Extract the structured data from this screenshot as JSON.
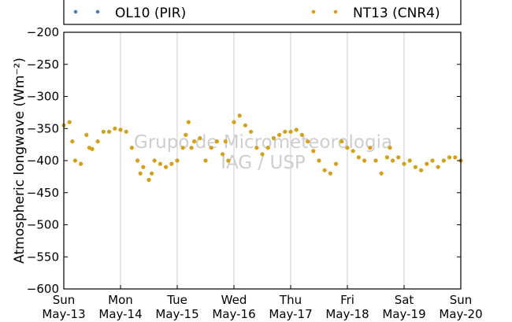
{
  "chart_data": {
    "type": "scatter",
    "ylabel": "Atmospheric longwave (Wm⁻²)",
    "xlabel": "",
    "ylim": [
      -600,
      -200
    ],
    "yticks": [
      -200,
      -250,
      -300,
      -350,
      -400,
      -450,
      -500,
      -550,
      -600
    ],
    "y_tick_labels": [
      "−200",
      "−250",
      "−300",
      "−350",
      "−400",
      "−450",
      "−500",
      "−550",
      "−600"
    ],
    "x_range_days": [
      0,
      7
    ],
    "x_ticks": [
      {
        "day": 0,
        "weekday": "Sun",
        "date": "May-13"
      },
      {
        "day": 1,
        "weekday": "Mon",
        "date": "May-14"
      },
      {
        "day": 2,
        "weekday": "Tue",
        "date": "May-15"
      },
      {
        "day": 3,
        "weekday": "Wed",
        "date": "May-16"
      },
      {
        "day": 4,
        "weekday": "Thu",
        "date": "May-17"
      },
      {
        "day": 5,
        "weekday": "Fri",
        "date": "May-18"
      },
      {
        "day": 6,
        "weekday": "Sat",
        "date": "May-19"
      },
      {
        "day": 7,
        "weekday": "Sun",
        "date": "May-20"
      }
    ],
    "grid": "vertical",
    "legend_placement": "top",
    "watermark": [
      "Grupo de Micrometeorologia",
      "IAG / USP"
    ],
    "series": [
      {
        "name": "OL10 (PIR)",
        "color": "#4a7fb5",
        "x": [],
        "y": []
      },
      {
        "name": "NT13 (CNR4)",
        "color": "#d4a017",
        "x": [
          0.0,
          0.1,
          0.15,
          0.2,
          0.3,
          0.4,
          0.45,
          0.5,
          0.6,
          0.7,
          0.8,
          0.9,
          1.0,
          1.1,
          1.2,
          1.3,
          1.35,
          1.4,
          1.5,
          1.55,
          1.6,
          1.7,
          1.8,
          1.9,
          2.0,
          2.1,
          2.15,
          2.2,
          2.25,
          2.3,
          2.4,
          2.5,
          2.6,
          2.7,
          2.8,
          2.85,
          2.9,
          3.0,
          3.1,
          3.2,
          3.3,
          3.4,
          3.5,
          3.6,
          3.7,
          3.8,
          3.9,
          4.0,
          4.1,
          4.2,
          4.3,
          4.4,
          4.5,
          4.6,
          4.7,
          4.8,
          4.9,
          5.0,
          5.1,
          5.2,
          5.3,
          5.4,
          5.5,
          5.6,
          5.7,
          5.75,
          5.8,
          5.9,
          6.0,
          6.1,
          6.2,
          6.3,
          6.4,
          6.5,
          6.6,
          6.7,
          6.8,
          6.9,
          7.0
        ],
        "y": [
          -345,
          -340,
          -370,
          -400,
          -405,
          -360,
          -380,
          -382,
          -370,
          -355,
          -355,
          -350,
          -352,
          -355,
          -380,
          -400,
          -420,
          -410,
          -430,
          -420,
          -400,
          -405,
          -410,
          -405,
          -400,
          -380,
          -360,
          -340,
          -380,
          -370,
          -365,
          -400,
          -380,
          -370,
          -390,
          -370,
          -400,
          -340,
          -330,
          -345,
          -355,
          -380,
          -390,
          -380,
          -365,
          -360,
          -355,
          -355,
          -352,
          -360,
          -370,
          -385,
          -400,
          -415,
          -420,
          -405,
          -370,
          -380,
          -385,
          -395,
          -400,
          -380,
          -400,
          -420,
          -395,
          -380,
          -400,
          -395,
          -405,
          -400,
          -410,
          -415,
          -405,
          -400,
          -410,
          -400,
          -395,
          -395,
          -400
        ]
      }
    ]
  }
}
